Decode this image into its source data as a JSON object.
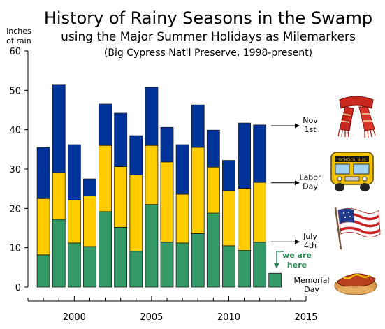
{
  "chart_data": {
    "type": "bar",
    "stacked": true,
    "title": "History of Rainy Seasons in the Swamp",
    "subtitle": "using the Major Summer Holidays as Milemarkers",
    "subtitle2": "(Big Cypress Nat'l Preserve, 1998-present)",
    "ylabel_line1": "inches",
    "ylabel_line2": "of rain",
    "ylim": [
      0,
      60
    ],
    "yticks": [
      0,
      10,
      20,
      30,
      40,
      50,
      60
    ],
    "xlim": [
      1997,
      2015
    ],
    "xticks_labeled": [
      2000,
      2005,
      2010,
      2015
    ],
    "grid": false,
    "x": [
      1998,
      1999,
      2000,
      2001,
      2002,
      2003,
      2004,
      2005,
      2006,
      2007,
      2008,
      2009,
      2010,
      2011,
      2012,
      2013
    ],
    "series": [
      {
        "name": "Memorial Day to July 4th",
        "color": "#339966",
        "values": [
          8.2,
          17.2,
          11.2,
          10.3,
          19.2,
          15.2,
          9.1,
          21.0,
          11.4,
          11.2,
          13.6,
          18.8,
          10.5,
          9.3,
          11.4,
          3.5
        ]
      },
      {
        "name": "July 4th to Labor Day",
        "color": "#ffcc00",
        "values": [
          14.3,
          11.8,
          10.9,
          12.9,
          16.8,
          15.4,
          19.4,
          15.0,
          20.4,
          12.4,
          21.9,
          11.7,
          14.0,
          15.8,
          15.2,
          0
        ]
      },
      {
        "name": "Labor Day to Nov 1st",
        "color": "#003399",
        "values": [
          13.0,
          22.5,
          14.1,
          4.3,
          10.5,
          13.6,
          10.0,
          14.8,
          8.8,
          12.6,
          10.8,
          9.4,
          7.7,
          16.6,
          14.6,
          0
        ]
      }
    ],
    "annotations": {
      "markers": [
        {
          "line1": "Nov",
          "line2": "1st",
          "y": 41
        },
        {
          "line1": "Labor",
          "line2": "Day",
          "y": 26.5
        },
        {
          "line1": "July",
          "line2": "4th",
          "y": 11.5
        },
        {
          "line1": "Memorial",
          "line2": "Day",
          "y": 0
        }
      ],
      "current_line1": "we are",
      "current_line2": "here",
      "current_year": 2013
    },
    "icons": [
      "scarf-icon",
      "school-bus-icon",
      "american-flag-icon",
      "hotdog-icon"
    ]
  }
}
